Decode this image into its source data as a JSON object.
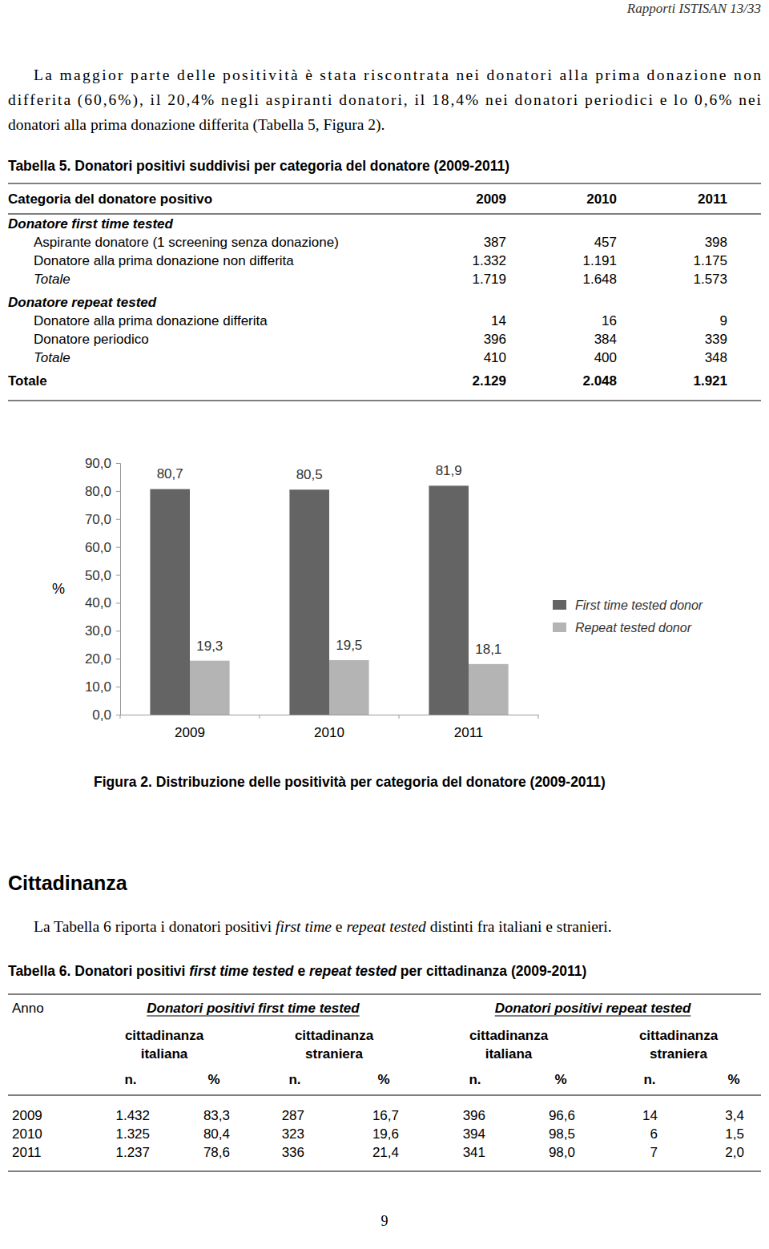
{
  "header": "Rapporti ISTISAN 13/33",
  "intro_lines": [
    "La maggior parte delle positività è stata riscontrata nei donatori alla prima donazione non",
    "differita (60,6%), il 20,4% negli aspiranti donatori, il 18,4% nei donatori periodici e lo 0,6% nei",
    "donatori alla prima donazione differita (Tabella 5, Figura 2)."
  ],
  "table5": {
    "caption": "Tabella 5. Donatori positivi suddivisi per categoria del donatore (2009-2011)",
    "header": [
      "Categoria del donatore positivo",
      "2009",
      "2010",
      "2011"
    ],
    "rows": [
      {
        "kind": "group",
        "cells": [
          "Donatore first time tested"
        ]
      },
      {
        "kind": "item",
        "cells": [
          "Aspirante donatore (1 screening senza donazione)",
          "387",
          "457",
          "398"
        ]
      },
      {
        "kind": "item",
        "cells": [
          "Donatore alla prima donazione non differita",
          "1.332",
          "1.191",
          "1.175"
        ]
      },
      {
        "kind": "subtotal",
        "cells": [
          "Totale",
          "1.719",
          "1.648",
          "1.573"
        ]
      },
      {
        "kind": "group",
        "cells": [
          "Donatore repeat tested"
        ]
      },
      {
        "kind": "item",
        "cells": [
          "Donatore alla prima donazione differita",
          "14",
          "16",
          "9"
        ]
      },
      {
        "kind": "item",
        "cells": [
          "Donatore periodico",
          "396",
          "384",
          "339"
        ]
      },
      {
        "kind": "subtotal",
        "cells": [
          "Totale",
          "410",
          "400",
          "348"
        ]
      },
      {
        "kind": "total",
        "cells": [
          "Totale",
          "2.129",
          "2.048",
          "1.921"
        ]
      }
    ]
  },
  "chart_data": {
    "type": "bar",
    "categories": [
      "2009",
      "2010",
      "2011"
    ],
    "series": [
      {
        "name": "First time tested donor",
        "color": "#646464",
        "values": [
          80.7,
          80.5,
          81.9
        ],
        "value_labels": [
          "80,7",
          "80,5",
          "81,9"
        ]
      },
      {
        "name": "Repeat tested donor",
        "color": "#b4b4b4",
        "values": [
          19.3,
          19.5,
          18.1
        ],
        "value_labels": [
          "19,3",
          "19,5",
          "18,1"
        ]
      }
    ],
    "y_label": "%",
    "ylim": [
      0,
      90
    ],
    "yticks": [
      {
        "value": 0,
        "label": "0,0"
      },
      {
        "value": 10,
        "label": "10,0"
      },
      {
        "value": 20,
        "label": "20,0"
      },
      {
        "value": 30,
        "label": "30,0"
      },
      {
        "value": 40,
        "label": "40,0"
      },
      {
        "value": 50,
        "label": "50,0"
      },
      {
        "value": 60,
        "label": "60,0"
      },
      {
        "value": 70,
        "label": "70,0"
      },
      {
        "value": 80,
        "label": "80,0"
      },
      {
        "value": 90,
        "label": "90,0"
      }
    ],
    "data_labels": true,
    "legend": "right",
    "grid": false
  },
  "figure_caption": "Figura 2. Distribuzione delle positività per categoria del donatore (2009-2011)",
  "section_title": "Cittadinanza",
  "section_text": [
    {
      "text": "La Tabella 6 riporta i donatori positivi "
    },
    {
      "text": "first time",
      "italic": true
    },
    {
      "text": " e "
    },
    {
      "text": "repeat tested",
      "italic": true
    },
    {
      "text": " distinti fra italiani e stranieri."
    }
  ],
  "table6": {
    "caption": [
      {
        "text": "Tabella 6. Donatori positivi "
      },
      {
        "text": "first time tested",
        "italic": true
      },
      {
        "text": " e "
      },
      {
        "text": "repeat tested",
        "italic": true
      },
      {
        "text": " per cittadinanza (2009-2011)"
      }
    ],
    "corner": "Anno",
    "groups": [
      "Donatori positivi first time tested",
      "Donatori positivi repeat tested"
    ],
    "subgroups": [
      [
        "cittadinanza",
        "italiana"
      ],
      [
        "cittadinanza",
        "straniera"
      ],
      [
        "cittadinanza",
        "italiana"
      ],
      [
        "cittadinanza",
        "straniera"
      ]
    ],
    "units": [
      "n.",
      "%"
    ],
    "rows": [
      [
        "2009",
        "1.432",
        "83,3",
        "287",
        "16,7",
        "396",
        "96,6",
        "14",
        "3,4"
      ],
      [
        "2010",
        "1.325",
        "80,4",
        "323",
        "19,6",
        "394",
        "98,5",
        "6",
        "1,5"
      ],
      [
        "2011",
        "1.237",
        "78,6",
        "336",
        "21,4",
        "341",
        "98,0",
        "7",
        "2,0"
      ]
    ]
  },
  "page_number": "9"
}
